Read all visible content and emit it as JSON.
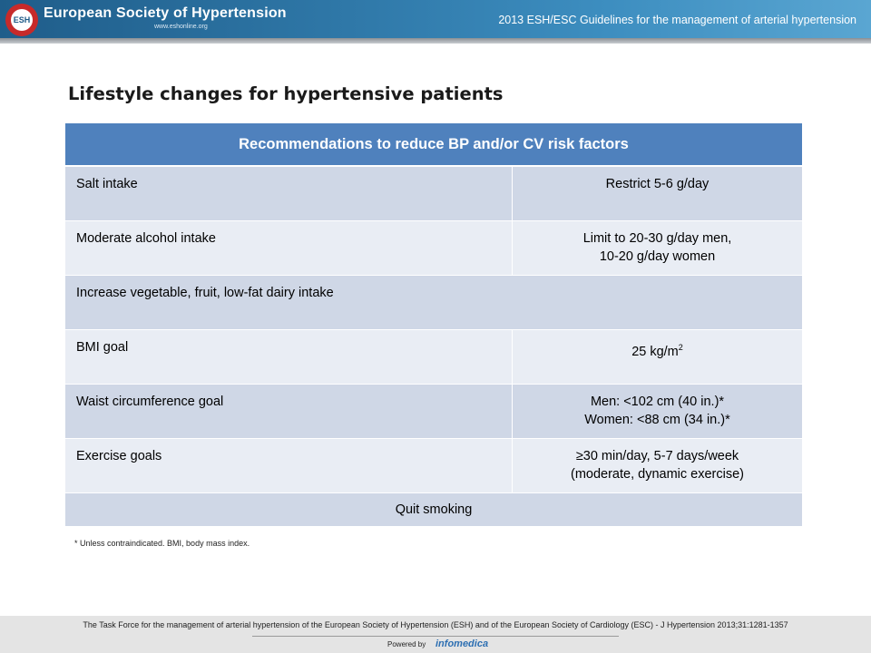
{
  "header": {
    "logo_text": "ESH",
    "org_name": "European Society of Hypertension",
    "org_url": "www.eshonline.org",
    "guideline_title": "2013 ESH/ESC Guidelines for the management of arterial hypertension"
  },
  "title": "Lifestyle changes for hypertensive patients",
  "table": {
    "header": "Recommendations to reduce BP and/or CV risk factors",
    "rows": [
      {
        "label": "Salt intake",
        "value": "Restrict 5-6 g/day"
      },
      {
        "label": "Moderate alcohol intake",
        "value_line1": "Limit to 20-30 g/day men,",
        "value_line2": "10-20 g/day women"
      },
      {
        "label": "Increase vegetable, fruit, low-fat dairy intake"
      },
      {
        "label": "BMI goal",
        "value": "25 kg/m",
        "value_sup": "2"
      },
      {
        "label": "Waist circumference goal",
        "value_line1": "Men: <102 cm (40 in.)*",
        "value_line2": "Women: <88 cm (34 in.)*"
      },
      {
        "label": "Exercise goals",
        "value_line1": "≥30 min/day, 5-7 days/week",
        "value_line2": "(moderate, dynamic exercise)"
      },
      {
        "label": "Quit smoking"
      }
    ]
  },
  "footnote": "* Unless contraindicated. BMI, body mass index.",
  "footer": {
    "citation": "The Task Force for the management of arterial hypertension of the European Society of Hypertension (ESH) and of the European Society of Cardiology (ESC) - J Hypertension 2013;31:1281-1357",
    "powered_by": "Powered by",
    "brand": "infomedica"
  },
  "colors": {
    "banner": "#2f78a8",
    "table_header": "#4f81bd",
    "row_dark": "#cfd7e6",
    "row_light": "#e9edf4"
  }
}
